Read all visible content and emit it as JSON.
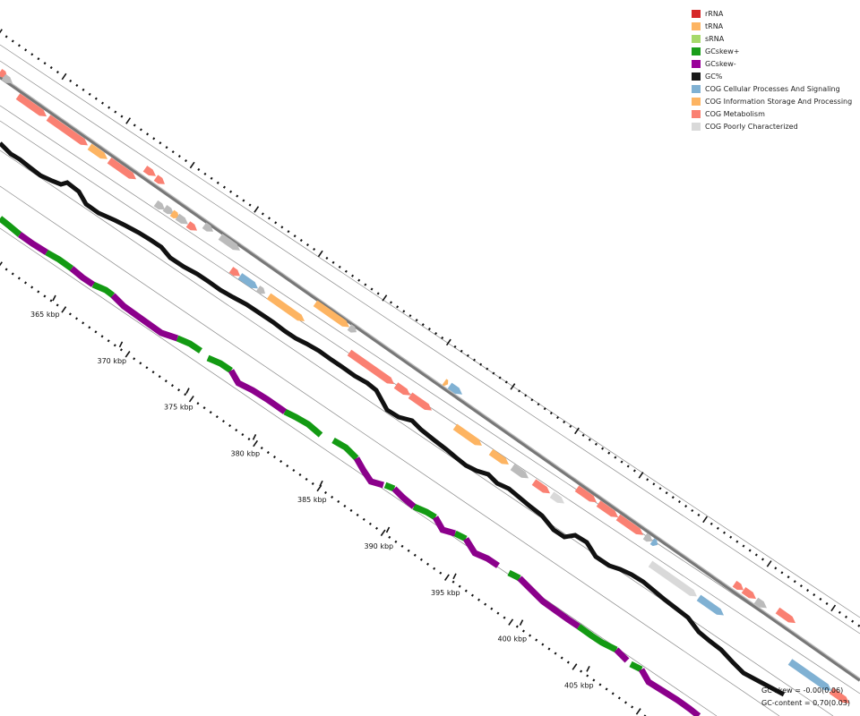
{
  "legend": [
    {
      "label": "rRNA",
      "color": "#d62728",
      "icon": "rrna-swatch"
    },
    {
      "label": "tRNA",
      "color": "#fdb462",
      "icon": "trna-swatch"
    },
    {
      "label": "sRNA",
      "color": "#a6d96a",
      "icon": "srna-swatch"
    },
    {
      "label": "GCskew+",
      "color": "#1a9e1a",
      "icon": "gcskew-plus-swatch"
    },
    {
      "label": "GCskew-",
      "color": "#990099",
      "icon": "gcskew-minus-swatch"
    },
    {
      "label": "GC%",
      "color": "#1a1a1a",
      "icon": "gc-percent-swatch"
    },
    {
      "label": "COG Cellular Processes And Signaling",
      "color": "#80b1d3",
      "icon": "cog-cellular-swatch"
    },
    {
      "label": "COG Information Storage And Processing",
      "color": "#fdb462",
      "icon": "cog-info-swatch"
    },
    {
      "label": "COG Metabolism",
      "color": "#fa8072",
      "icon": "cog-metabolism-swatch"
    },
    {
      "label": "COG Poorly Characterized",
      "color": "#d9d9d9",
      "icon": "cog-poorly-swatch"
    }
  ],
  "axis": {
    "tick_labels": [
      "365 kbp",
      "370 kbp",
      "375 kbp",
      "380 kbp",
      "385 kbp",
      "390 kbp",
      "395 kbp",
      "400 kbp",
      "405 kbp"
    ],
    "unit": "kbp"
  },
  "stats": {
    "gc_skew": "GC-skew = -0.00(0.06)",
    "gc_content": "GC-content = 0.70(0.03)"
  }
}
